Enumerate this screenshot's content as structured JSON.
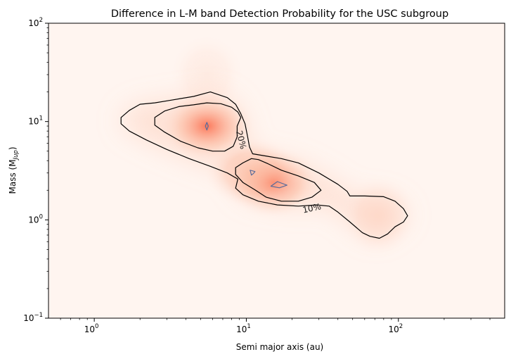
{
  "chart_data": {
    "type": "heatmap",
    "title": "Difference in L-M band Detection Probability for the USC subgroup",
    "xlabel": "Semi major axis (au)",
    "ylabel": "Mass (M",
    "ylabel_sub": "Jup",
    "ylabel_close": ")",
    "x_scale": "log",
    "y_scale": "log",
    "xlim": [
      0.5,
      500
    ],
    "ylim": [
      0.1,
      100
    ],
    "x_ticks": [
      {
        "value": 1,
        "base": "10",
        "exp": "0"
      },
      {
        "value": 10,
        "base": "10",
        "exp": "1"
      },
      {
        "value": 100,
        "base": "10",
        "exp": "2"
      }
    ],
    "y_ticks": [
      {
        "value": 0.1,
        "base": "10",
        "exp": "−1"
      },
      {
        "value": 1,
        "base": "10",
        "exp": "0"
      },
      {
        "value": 10,
        "base": "10",
        "exp": "1"
      },
      {
        "value": 100,
        "base": "10",
        "exp": "2"
      }
    ],
    "grid": false,
    "colormap": [
      "#fff5f0",
      "#fcbba1",
      "#fb6a4a"
    ],
    "contour_levels": [
      {
        "label": "10%",
        "color": "#000000",
        "label_at": {
          "x": 27,
          "y": 1.3
        },
        "label_angle": -12
      },
      {
        "label": "20%",
        "color": "#000000",
        "label_at": {
          "x": 9.2,
          "y": 6.5
        },
        "label_angle": 76
      },
      {
        "label": "",
        "color": "#5a6b9a"
      }
    ],
    "peaks": [
      {
        "x": 5.5,
        "y": 9.0,
        "value": 0.4
      },
      {
        "x": 15,
        "y": 2.4,
        "value": 0.4
      },
      {
        "x": 11,
        "y": 3.0,
        "value": 0.3
      },
      {
        "x": 75,
        "y": 1.1,
        "value": 0.12
      },
      {
        "x": 5.5,
        "y": 30,
        "value": 0.08
      }
    ],
    "contours": {
      "c10": [
        [
          5.8,
          20
        ],
        [
          4.5,
          18
        ],
        [
          3.2,
          16.5
        ],
        [
          2.5,
          15.5
        ],
        [
          2.0,
          15
        ],
        [
          1.7,
          13
        ],
        [
          1.5,
          11
        ],
        [
          1.5,
          9.5
        ],
        [
          1.7,
          8
        ],
        [
          2.2,
          6.5
        ],
        [
          3.0,
          5.2
        ],
        [
          4.2,
          4.2
        ],
        [
          5.8,
          3.5
        ],
        [
          7.5,
          3.0
        ],
        [
          8.8,
          2.6
        ],
        [
          8.5,
          2.1
        ],
        [
          9.5,
          1.8
        ],
        [
          12,
          1.55
        ],
        [
          16,
          1.42
        ],
        [
          22,
          1.38
        ],
        [
          29,
          1.42
        ],
        [
          35,
          1.38
        ],
        [
          40,
          1.2
        ],
        [
          48,
          0.95
        ],
        [
          58,
          0.74
        ],
        [
          65,
          0.68
        ],
        [
          75,
          0.65
        ],
        [
          85,
          0.72
        ],
        [
          95,
          0.85
        ],
        [
          108,
          0.95
        ],
        [
          115,
          1.1
        ],
        [
          108,
          1.3
        ],
        [
          95,
          1.55
        ],
        [
          80,
          1.72
        ],
        [
          60,
          1.75
        ],
        [
          48,
          1.75
        ],
        [
          46,
          1.95
        ],
        [
          40,
          2.3
        ],
        [
          30,
          3.0
        ],
        [
          22,
          3.8
        ],
        [
          17,
          4.2
        ],
        [
          13,
          4.5
        ],
        [
          11,
          4.7
        ],
        [
          10.5,
          5.5
        ],
        [
          10.2,
          7.0
        ],
        [
          9.8,
          9.5
        ],
        [
          9.2,
          12
        ],
        [
          8.5,
          15
        ],
        [
          7.5,
          17.5
        ],
        [
          5.8,
          20
        ]
      ],
      "c20_a": [
        [
          5.5,
          15.5
        ],
        [
          4.5,
          14.8
        ],
        [
          3.6,
          14.2
        ],
        [
          2.9,
          12.8
        ],
        [
          2.5,
          11
        ],
        [
          2.5,
          9.2
        ],
        [
          2.9,
          7.8
        ],
        [
          3.7,
          6.3
        ],
        [
          4.8,
          5.4
        ],
        [
          6.0,
          5.0
        ],
        [
          7.2,
          5.0
        ],
        [
          8.2,
          5.6
        ],
        [
          8.7,
          7.0
        ],
        [
          8.7,
          9.0
        ],
        [
          9.2,
          11
        ],
        [
          8.8,
          12.5
        ],
        [
          8.0,
          14
        ],
        [
          6.8,
          15.2
        ],
        [
          5.5,
          15.5
        ]
      ],
      "c20_b": [
        [
          10.8,
          4.2
        ],
        [
          9.5,
          3.8
        ],
        [
          8.5,
          3.4
        ],
        [
          8.5,
          2.9
        ],
        [
          9.5,
          2.4
        ],
        [
          11.5,
          2.0
        ],
        [
          13.5,
          1.7
        ],
        [
          17,
          1.55
        ],
        [
          22,
          1.55
        ],
        [
          27,
          1.7
        ],
        [
          31,
          2.0
        ],
        [
          28,
          2.4
        ],
        [
          22,
          2.8
        ],
        [
          17,
          3.2
        ],
        [
          14,
          3.7
        ],
        [
          12,
          4.1
        ],
        [
          10.8,
          4.2
        ]
      ],
      "c30_a": [
        [
          5.5,
          9.8
        ],
        [
          5.62,
          9.0
        ],
        [
          5.5,
          8.2
        ],
        [
          5.38,
          9.0
        ],
        [
          5.5,
          9.8
        ]
      ],
      "c30_b": [
        [
          10.6,
          3.2
        ],
        [
          11.4,
          3.1
        ],
        [
          11.1,
          2.95
        ],
        [
          10.8,
          2.85
        ],
        [
          10.6,
          3.2
        ]
      ],
      "c30_c": [
        [
          14.5,
          2.2
        ],
        [
          16,
          2.45
        ],
        [
          18.5,
          2.25
        ],
        [
          16.5,
          2.12
        ],
        [
          14.5,
          2.2
        ]
      ]
    }
  }
}
